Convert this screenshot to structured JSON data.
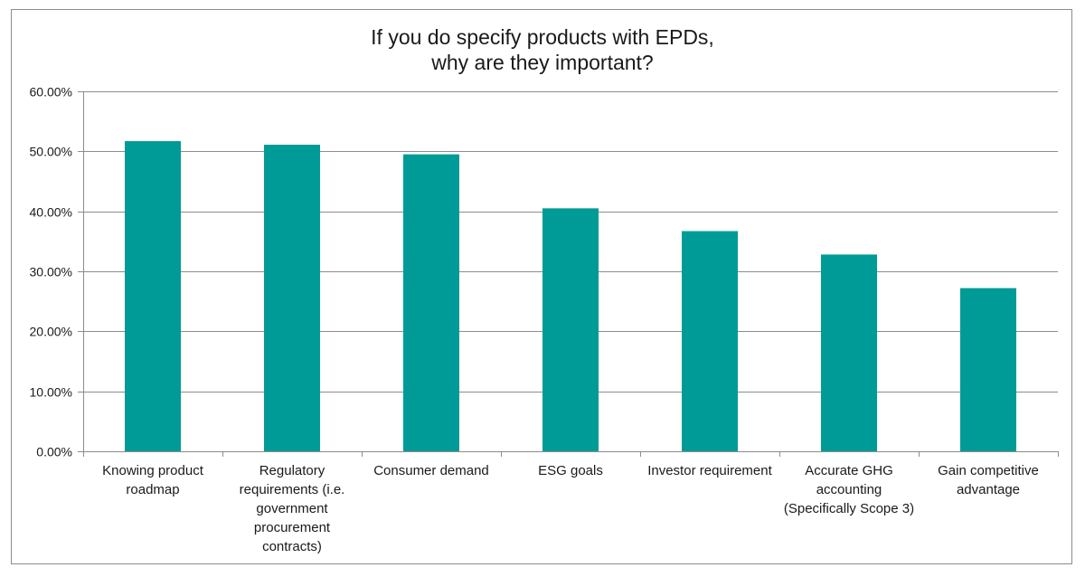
{
  "chart_data": {
    "type": "bar",
    "title_lines": [
      "If you do specify products with EPDs,",
      "why are they important?"
    ],
    "categories": [
      "Knowing product roadmap",
      "Regulatory requirements (i.e. government procurement contracts)",
      "Consumer demand",
      "ESG goals",
      "Investor requirement",
      "Accurate GHG accounting (Specifically Scope 3)",
      "Gain competitive advantage"
    ],
    "category_label_lines": [
      [
        "Knowing product",
        "roadmap"
      ],
      [
        "Regulatory",
        "requirements (i.e.",
        "government",
        "procurement",
        "contracts)"
      ],
      [
        "Consumer demand"
      ],
      [
        "ESG goals"
      ],
      [
        "Investor requirement"
      ],
      [
        "Accurate GHG",
        "accounting",
        "(Specifically Scope 3)"
      ],
      [
        "Gain competitive",
        "advantage"
      ]
    ],
    "values": [
      51.7,
      51.1,
      49.5,
      40.5,
      36.7,
      32.8,
      27.2
    ],
    "ylim": [
      0,
      60
    ],
    "yticks": [
      "0.00%",
      "10.00%",
      "20.00%",
      "30.00%",
      "40.00%",
      "50.00%",
      "60.00%"
    ],
    "ytick_values": [
      0,
      10,
      20,
      30,
      40,
      50,
      60
    ],
    "xlabel": "",
    "ylabel": "",
    "grid": true,
    "legend": "none",
    "bar_color": "#009b96",
    "grid_color": "#8c8c8c"
  }
}
